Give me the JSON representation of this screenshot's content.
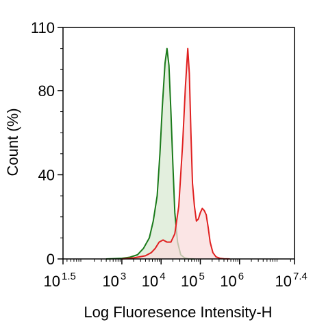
{
  "chart_data": {
    "type": "area",
    "xscale": "log10",
    "xlim": [
      1.5,
      7.4
    ],
    "ylim": [
      0,
      110
    ],
    "xlabel": "Log Fluoresence Intensity-H",
    "ylabel": "Count  (%)",
    "y_ticks": [
      {
        "value": 0,
        "label": "0"
      },
      {
        "value": 40,
        "label": "40"
      },
      {
        "value": 80,
        "label": "80"
      },
      {
        "value": 110,
        "label": "110"
      }
    ],
    "x_ticks": [
      {
        "exp": 1.5,
        "base": "10",
        "sup": "1.5"
      },
      {
        "exp": 3,
        "base": "10",
        "sup": "3"
      },
      {
        "exp": 4,
        "base": "10",
        "sup": "4"
      },
      {
        "exp": 5,
        "base": "10",
        "sup": "5"
      },
      {
        "exp": 6,
        "base": "10",
        "sup": "6"
      },
      {
        "exp": 7.4,
        "base": "10",
        "sup": "7.4"
      }
    ],
    "series": [
      {
        "color": "#1a7a1a",
        "fill": "#d9ead3",
        "x_log10": [
          2.6,
          3.0,
          3.2,
          3.4,
          3.55,
          3.7,
          3.8,
          3.9,
          3.97,
          4.03,
          4.1,
          4.15,
          4.2,
          4.25,
          4.3,
          4.35,
          4.42,
          4.5,
          4.6,
          4.7,
          4.85
        ],
        "y": [
          0,
          0.3,
          0.8,
          2,
          5,
          10,
          18,
          30,
          50,
          72,
          93,
          100,
          92,
          70,
          45,
          22,
          8,
          2,
          0.5,
          0.1,
          0
        ]
      },
      {
        "color": "#e02020",
        "fill": "#f9dcdc",
        "x_log10": [
          3.0,
          3.3,
          3.6,
          3.75,
          3.85,
          3.95,
          4.05,
          4.15,
          4.25,
          4.35,
          4.45,
          4.55,
          4.62,
          4.68,
          4.72,
          4.76,
          4.8,
          4.85,
          4.9,
          4.95,
          5.0,
          5.05,
          5.1,
          5.15,
          5.2,
          5.25,
          5.32,
          5.4,
          5.5,
          5.6,
          5.75
        ],
        "y": [
          0,
          0.5,
          1.5,
          3,
          5,
          8,
          9,
          8,
          8,
          12,
          25,
          55,
          82,
          100,
          88,
          60,
          36,
          25,
          18,
          19,
          22,
          24,
          23,
          21,
          15,
          8,
          3,
          1,
          0.3,
          0.1,
          0
        ]
      }
    ]
  }
}
